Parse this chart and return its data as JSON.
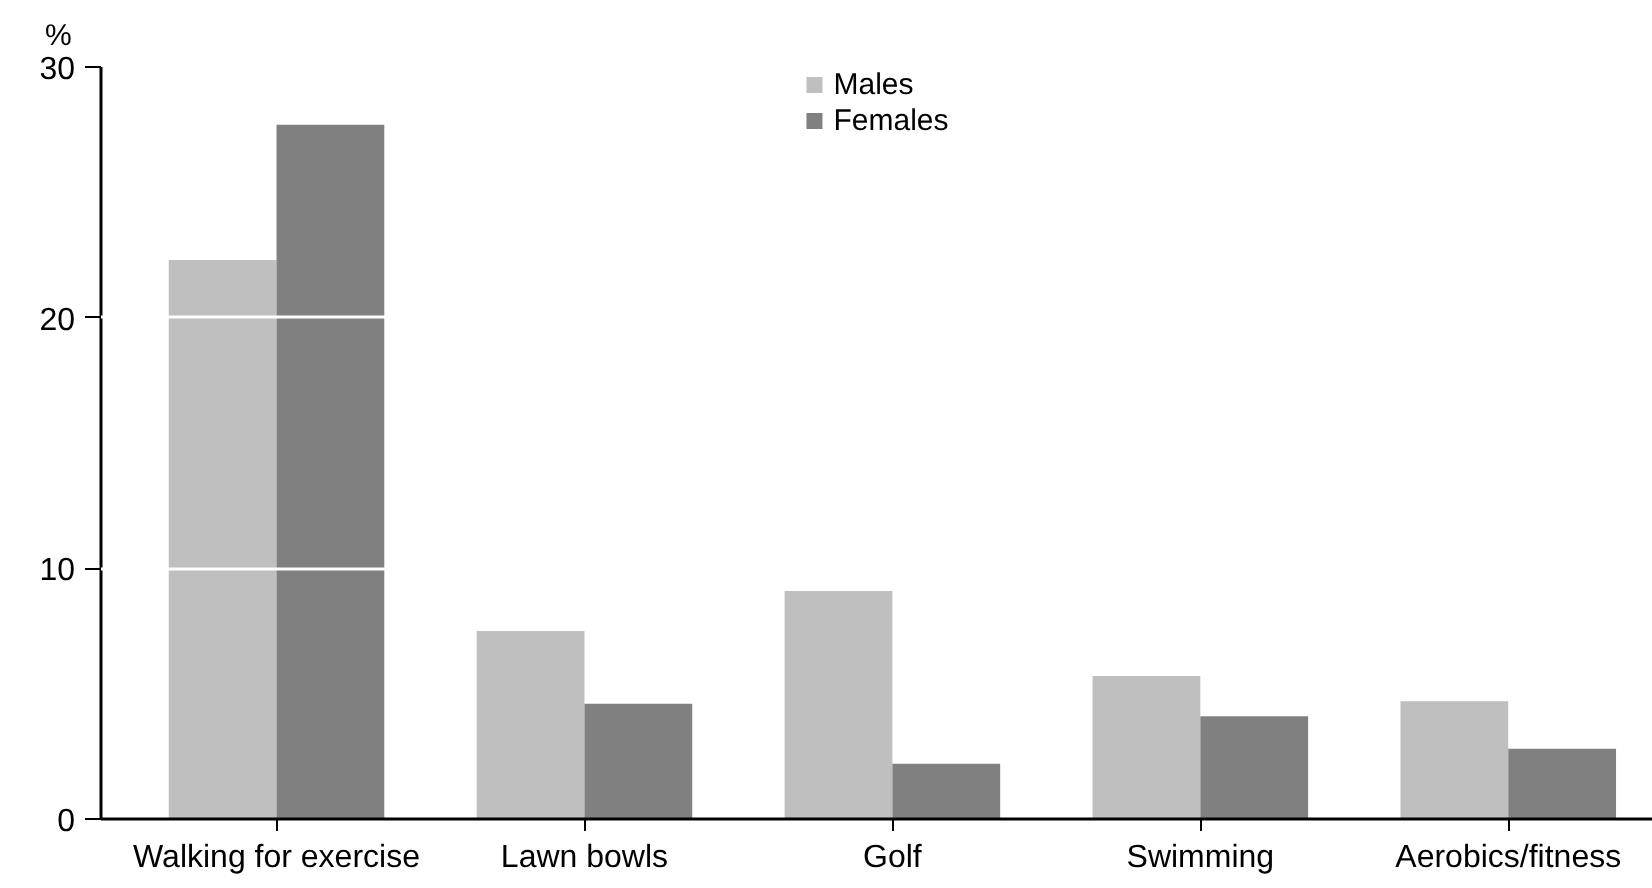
{
  "chart_data": {
    "type": "bar",
    "ylabel": "%",
    "categories": [
      "Walking for exercise",
      "Lawn bowls",
      "Golf",
      "Swimming",
      "Aerobics/fitness"
    ],
    "series": [
      {
        "name": "Males",
        "color": "#bfbfbf",
        "values": [
          22.3,
          7.5,
          9.1,
          5.7,
          4.7
        ]
      },
      {
        "name": "Females",
        "color": "#808080",
        "values": [
          27.7,
          4.6,
          2.2,
          4.1,
          2.8
        ]
      }
    ],
    "ylim": [
      0,
      30
    ],
    "yticks": [
      0,
      10,
      20,
      30
    ],
    "grid": "y",
    "legend": "top"
  }
}
